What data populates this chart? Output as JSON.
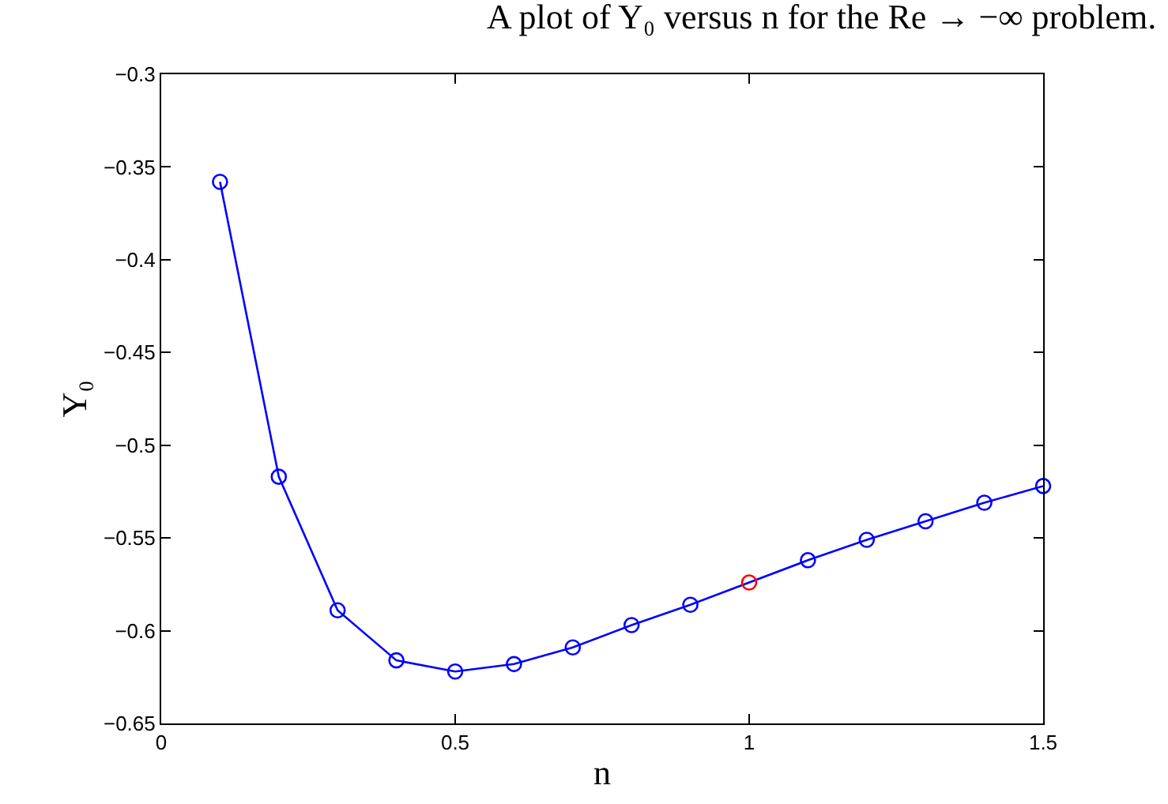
{
  "chart_data": {
    "type": "line",
    "title": "A plot of Y₀ versus n for the Re → −∞ problem.",
    "xlabel": "n",
    "ylabel": "Y₀",
    "x": [
      0.1,
      0.2,
      0.3,
      0.4,
      0.5,
      0.6,
      0.7,
      0.8,
      0.9,
      1.0,
      1.1,
      1.2,
      1.3,
      1.4,
      1.5
    ],
    "series": [
      {
        "color": "#0000ff",
        "values": [
          -0.358,
          -0.517,
          -0.589,
          -0.616,
          -0.622,
          -0.618,
          -0.609,
          -0.597,
          -0.586,
          null,
          -0.562,
          -0.551,
          -0.541,
          -0.531,
          -0.522
        ]
      },
      {
        "type": "scatter",
        "color": "#ff0000",
        "x": [
          1.0
        ],
        "values": [
          -0.574
        ]
      }
    ],
    "xlim": [
      0,
      1.5
    ],
    "xticks": [
      0,
      0.5,
      1,
      1.5
    ],
    "ylim": [
      -0.65,
      -0.3
    ],
    "yticks": [
      -0.65,
      -0.6,
      -0.55,
      -0.5,
      -0.45,
      -0.4,
      -0.35,
      -0.3
    ],
    "grid": false,
    "marker": "circle",
    "line_style": "solid"
  }
}
